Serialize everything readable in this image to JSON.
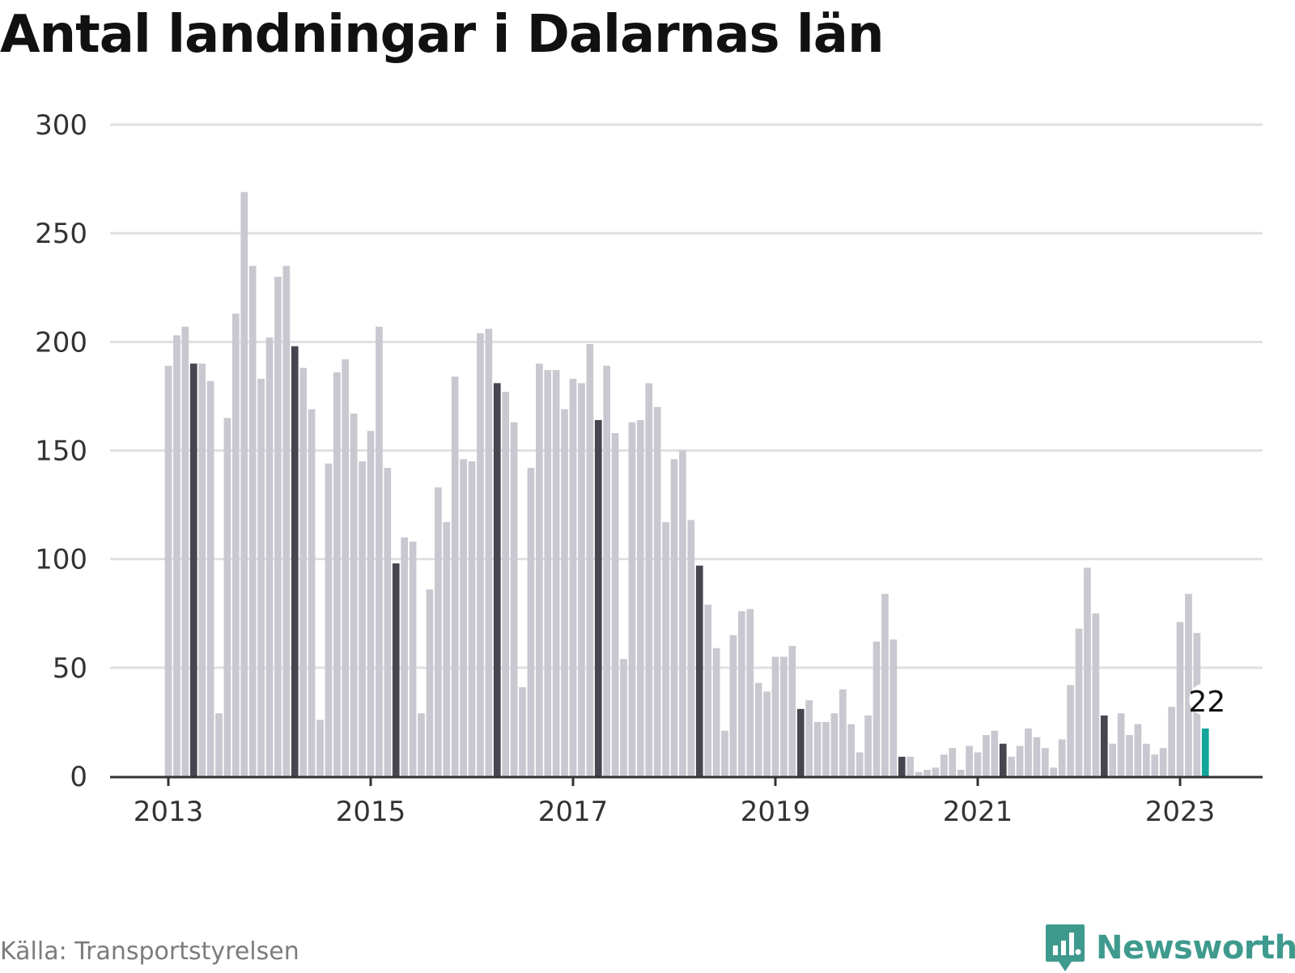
{
  "title": "Antal landningar i Dalarnas län",
  "source": "Källa: Transportstyrelsen",
  "brand": "Newsworthy",
  "colors": {
    "bar": "#c8c8d0",
    "highlight": "#464650",
    "latest": "#13a59a",
    "grid": "#e0e0e4",
    "axis": "#333333",
    "text": "#333333",
    "brand": "#3f9a8e"
  },
  "chart_data": {
    "type": "bar",
    "title": "Antal landningar i Dalarnas län",
    "xlabel": "",
    "ylabel": "",
    "ylim": [
      0,
      300
    ],
    "yticks": [
      0,
      50,
      100,
      150,
      200,
      250,
      300
    ],
    "xtick_labels": [
      "2013",
      "2015",
      "2017",
      "2019",
      "2021",
      "2023"
    ],
    "start_month": "2013-01",
    "end_month": "2023-04",
    "highlight_month": "April",
    "grid": true,
    "callout": "22",
    "values": [
      189,
      203,
      207,
      190,
      190,
      182,
      29,
      165,
      213,
      269,
      235,
      183,
      202,
      230,
      235,
      198,
      188,
      169,
      26,
      144,
      186,
      192,
      167,
      145,
      159,
      207,
      142,
      98,
      110,
      108,
      29,
      86,
      133,
      117,
      184,
      146,
      145,
      204,
      206,
      181,
      177,
      163,
      41,
      142,
      190,
      187,
      187,
      169,
      183,
      181,
      199,
      164,
      189,
      158,
      54,
      163,
      164,
      181,
      170,
      117,
      146,
      150,
      118,
      97,
      79,
      59,
      21,
      65,
      76,
      77,
      43,
      39,
      55,
      55,
      60,
      31,
      35,
      25,
      25,
      29,
      40,
      24,
      11,
      28,
      62,
      84,
      63,
      9,
      9,
      2,
      3,
      4,
      10,
      13,
      3,
      14,
      11,
      19,
      21,
      15,
      9,
      14,
      22,
      18,
      13,
      4,
      17,
      42,
      68,
      96,
      75,
      28,
      15,
      29,
      19,
      24,
      15,
      10,
      13,
      32,
      71,
      84,
      66,
      22
    ]
  }
}
